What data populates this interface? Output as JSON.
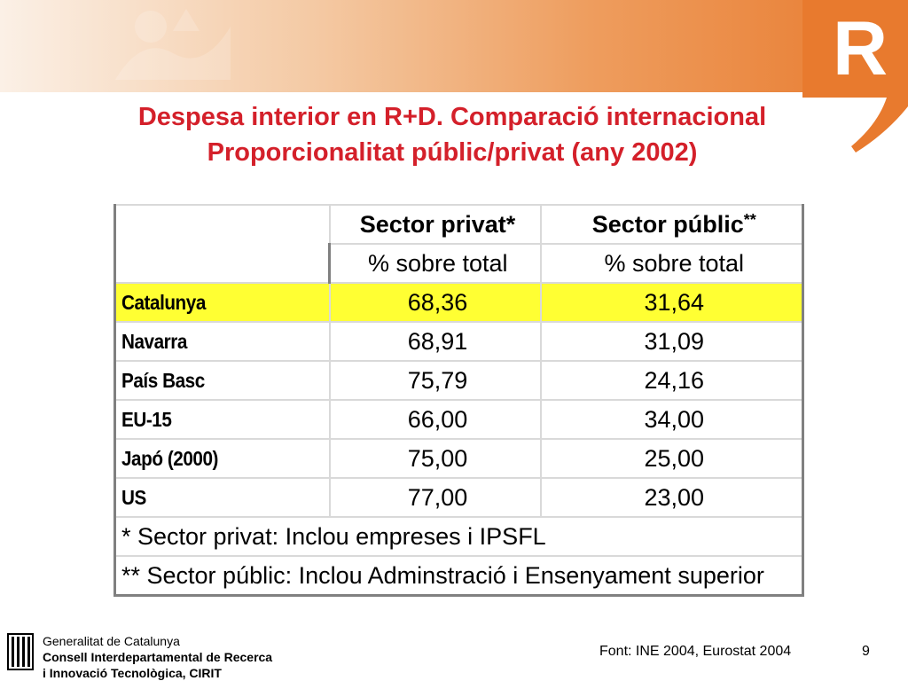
{
  "title": {
    "line1": "Despesa interior en R+D. Comparació internacional",
    "line2": "Proporcionalitat públic/privat (any 2002)"
  },
  "logo": {
    "letter": "R"
  },
  "table": {
    "headers": {
      "col2_main": "Sector privat*",
      "col3_main": "Sector públic",
      "col3_stars": "**",
      "col2_sub": "% sobre total",
      "col3_sub": "% sobre total"
    },
    "rows": [
      {
        "country": "Catalunya",
        "privat": "68,36",
        "public": "31,64",
        "highlight": true
      },
      {
        "country": "Navarra",
        "privat": "68,91",
        "public": "31,09"
      },
      {
        "country": "País Basc",
        "privat": "75,79",
        "public": "24,16"
      },
      {
        "country": "EU-15",
        "privat": "66,00",
        "public": "34,00"
      },
      {
        "country": "Japó (2000)",
        "privat": "75,00",
        "public": "25,00"
      },
      {
        "country": "US",
        "privat": "77,00",
        "public": "23,00"
      }
    ],
    "notes": [
      "* Sector privat: Inclou empreses i IPSFL",
      "** Sector públic: Inclou Adminstració i Ensenyament superior"
    ]
  },
  "footer": {
    "org_line1": "Generalitat de Catalunya",
    "org_line2": "Consell Interdepartamental de Recerca",
    "org_line3": "i Innovació Tecnològica, CIRIT",
    "source": "Font: INE 2004, Eurostat 2004",
    "page": "9"
  },
  "colors": {
    "title": "#d4202a",
    "highlight": "#ffff33",
    "brand_orange": "#e87a2e"
  }
}
